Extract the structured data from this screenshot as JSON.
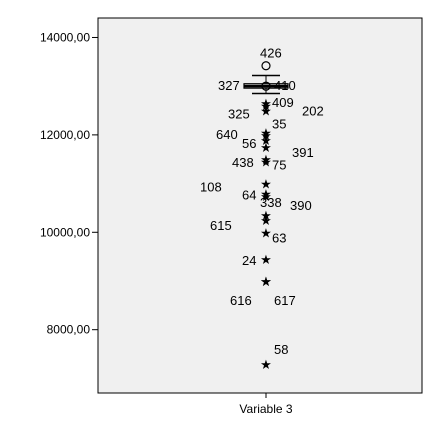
{
  "chart_data": {
    "type": "boxplot",
    "title": "",
    "xlabel": "",
    "ylabel": "",
    "categories": [
      "Variable 3"
    ],
    "y_ticks": [
      {
        "value": 8000,
        "label": "8000,00"
      },
      {
        "value": 10000,
        "label": "10000,00"
      },
      {
        "value": 12000,
        "label": "12000,00"
      },
      {
        "value": 14000,
        "label": "14000,00"
      }
    ],
    "ylim": [
      6700,
      14400
    ],
    "grid": false,
    "box": {
      "q1": 12960,
      "median": 13000,
      "q3": 13050,
      "whisker_low": 12850,
      "whisker_high": 13220
    },
    "outliers": [
      {
        "case": "426",
        "value": 13420,
        "marker": "o"
      },
      {
        "case": "327",
        "value": 13000,
        "marker": "o"
      },
      {
        "case": "410",
        "value": 13000,
        "marker": "o"
      },
      {
        "case": "409",
        "value": 12650,
        "marker": "*"
      },
      {
        "case": "202",
        "value": 12600,
        "marker": "*"
      },
      {
        "case": "325",
        "value": 12500,
        "marker": "*"
      },
      {
        "case": "35",
        "value": 12050,
        "marker": "*"
      },
      {
        "case": "640",
        "value": 12000,
        "marker": "*"
      },
      {
        "case": "56",
        "value": 11900,
        "marker": "*"
      },
      {
        "case": "391",
        "value": 11750,
        "marker": "*"
      },
      {
        "case": "438",
        "value": 11500,
        "marker": "*"
      },
      {
        "case": "75",
        "value": 11450,
        "marker": "*"
      },
      {
        "case": "108",
        "value": 11000,
        "marker": "*"
      },
      {
        "case": "64",
        "value": 10800,
        "marker": "*"
      },
      {
        "case": "390",
        "value": 10750,
        "marker": "*"
      },
      {
        "case": "338",
        "value": 10350,
        "marker": "*"
      },
      {
        "case": "615",
        "value": 10250,
        "marker": "*"
      },
      {
        "case": "63",
        "value": 10000,
        "marker": "*"
      },
      {
        "case": "24",
        "value": 9450,
        "marker": "*"
      },
      {
        "case": "616",
        "value": 9000,
        "marker": "*"
      },
      {
        "case": "617",
        "value": 9000,
        "marker": "*"
      },
      {
        "case": "58",
        "value": 7300,
        "marker": "*"
      }
    ],
    "colors": {
      "plot_background": "#f0f0f0",
      "frame": "#000000"
    }
  }
}
